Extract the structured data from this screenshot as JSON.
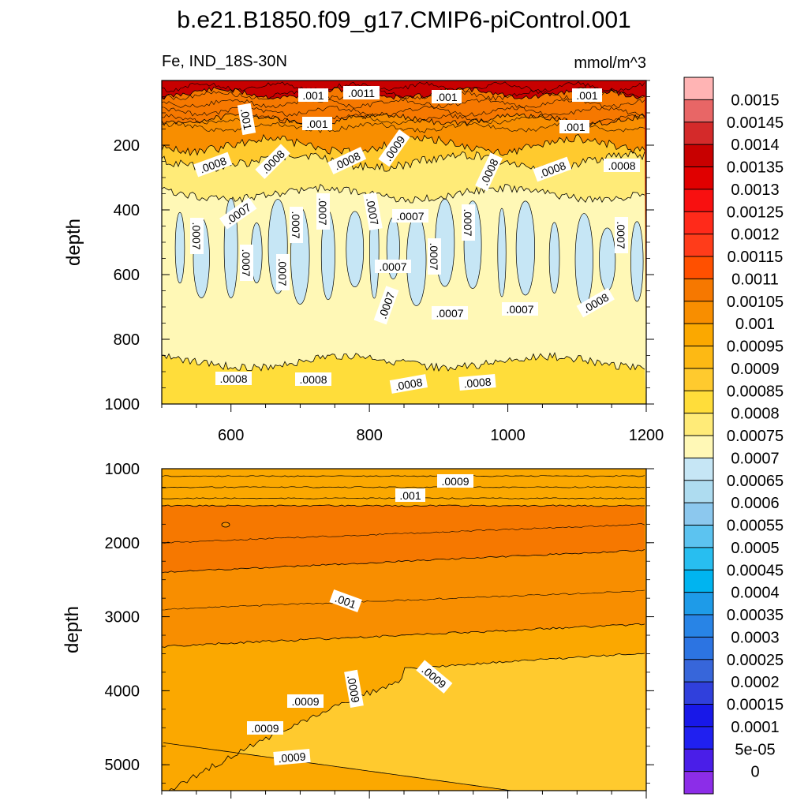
{
  "title": "b.e21.B1850.f09_g17.CMIP6-piControl.001",
  "chart_data": {
    "type": "contour",
    "variable": "Fe",
    "region": "IND_18S-30N",
    "label_left": "Fe, IND_18S-30N",
    "units": "mmol/m^3",
    "ylabel": "depth",
    "upper_panel": {
      "xlim": [
        500,
        1200
      ],
      "ylim": [
        1000,
        0
      ],
      "x_ticks": [
        600,
        800,
        1000,
        1200
      ],
      "y_ticks": [
        200,
        400,
        600,
        800,
        1000
      ],
      "layers": [
        {
          "depth_top": 0,
          "depth_bottom": 40,
          "value": 0.00135
        },
        {
          "depth_top": 40,
          "depth_bottom": 120,
          "value": 0.00105
        },
        {
          "depth_top": 120,
          "depth_bottom": 200,
          "value": 0.001
        },
        {
          "depth_top": 200,
          "depth_bottom": 250,
          "value": 0.00085
        },
        {
          "depth_top": 250,
          "depth_bottom": 350,
          "value": 0.00075
        },
        {
          "depth_top": 350,
          "depth_bottom": 870,
          "value": 0.0007
        },
        {
          "depth_top": 870,
          "depth_bottom": 1000,
          "value": 0.0008
        }
      ],
      "contour_labels": [
        ".001",
        ".0011",
        ".001",
        ".001",
        ".001",
        ".001",
        ".001",
        ".0009",
        ".0008",
        ".0008",
        ".0008",
        ".0008",
        ".0008",
        ".0008",
        ".0007",
        ".0007",
        ".0007",
        ".0007",
        ".0007",
        ".0007",
        ".0007",
        ".0007",
        ".0007",
        ".0007",
        ".0007",
        ".0007",
        ".0007",
        ".0007",
        ".0007",
        ".0008",
        ".0008",
        ".0008",
        ".0008",
        ".0008"
      ]
    },
    "lower_panel": {
      "xlim": [
        500,
        1200
      ],
      "ylim": [
        5350,
        1000
      ],
      "y_ticks": [
        1000,
        2000,
        3000,
        4000,
        5000
      ],
      "layers": [
        {
          "depth_top": 1000,
          "depth_bottom": 1500,
          "value": 0.00095
        },
        {
          "depth_top": 1500,
          "depth_bottom": 2400,
          "value": 0.00105
        },
        {
          "depth_top": 2400,
          "depth_bottom": 3700,
          "value": 0.001
        },
        {
          "depth_top": 3700,
          "depth_bottom": 5350,
          "value": 0.00095
        },
        {
          "depth_top": 3500,
          "depth_bottom": 5350,
          "value": 0.00085
        }
      ],
      "contour_labels": [
        ".0009",
        ".001",
        ".001",
        ".0009",
        ".0009",
        ".0009",
        ".0009",
        ".0009"
      ]
    },
    "colorbar": {
      "levels": [
        "0.0015",
        "0.00145",
        "0.0014",
        "0.00135",
        "0.0013",
        "0.00125",
        "0.0012",
        "0.00115",
        "0.0011",
        "0.00105",
        "0.001",
        "0.00095",
        "0.0009",
        "0.00085",
        "0.0008",
        "0.00075",
        "0.0007",
        "0.00065",
        "0.0006",
        "0.00055",
        "0.0005",
        "0.00045",
        "0.0004",
        "0.00035",
        "0.0003",
        "0.00025",
        "0.0002",
        "0.00015",
        "0.0001",
        "5e-05",
        "0"
      ],
      "colors": [
        "#FFB4B4",
        "#E86666",
        "#D42A2A",
        "#C80000",
        "#E00000",
        "#F81010",
        "#FF2A1A",
        "#FF3C1A",
        "#FF5000",
        "#F67800",
        "#F88E00",
        "#FBA800",
        "#FDB914",
        "#FFCA2E",
        "#FFDD3A",
        "#FFEB78",
        "#FFF8B6",
        "#C6E6F5",
        "#AEDCF0",
        "#8CC8EE",
        "#5CC3F0",
        "#28BEF0",
        "#00B4F0",
        "#1E9BE8",
        "#2884E6",
        "#2C74E2",
        "#3766DA",
        "#3040DC",
        "#1818E8",
        "#2020F0",
        "#4A1EE8",
        "#8C2DE8"
      ]
    }
  },
  "colors": {
    "background": "#ffffff",
    "contour_line": "#000000"
  }
}
